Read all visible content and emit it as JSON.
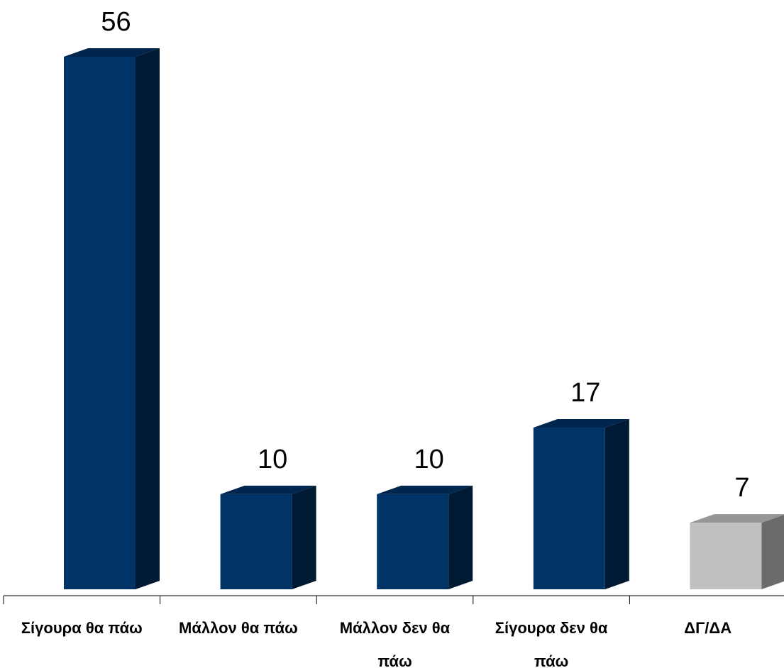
{
  "chart_data": {
    "type": "bar",
    "categories": [
      [
        "Σίγουρα θα πάω"
      ],
      [
        "Μάλλον θα πάω"
      ],
      [
        "Μάλλον δεν θα",
        "πάω"
      ],
      [
        "Σίγουρα δεν θα",
        "πάω"
      ],
      [
        "ΔΓ/ΔΑ"
      ]
    ],
    "values": [
      56,
      10,
      10,
      17,
      7
    ],
    "data_labels": [
      "56",
      "10",
      "10",
      "17",
      "7"
    ],
    "title": "",
    "xlabel": "",
    "ylabel": "",
    "ylim": [
      0,
      56
    ],
    "grid": false,
    "legend": "none",
    "style": "3d-column",
    "colors": {
      "front": [
        "#003366",
        "#003366",
        "#003366",
        "#003366",
        "#c0c0c0"
      ],
      "side": [
        "#001a33",
        "#001a33",
        "#001a33",
        "#001a33",
        "#6b6b6b"
      ],
      "top": [
        "#00264d",
        "#00264d",
        "#00264d",
        "#00264d",
        "#969696"
      ],
      "axis": "#000000"
    }
  }
}
